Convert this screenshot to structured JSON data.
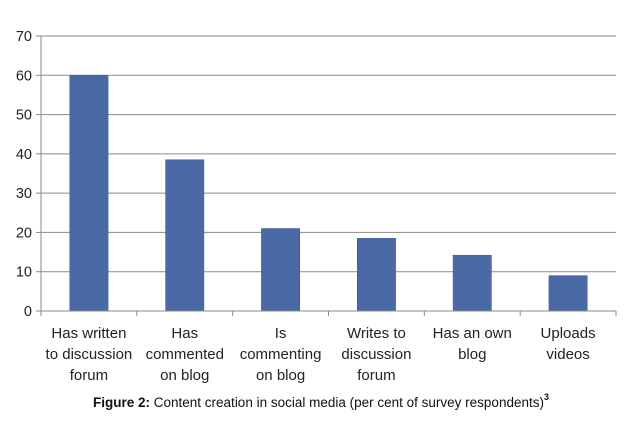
{
  "chart_data": {
    "type": "bar",
    "categories": [
      "Has written to discussion forum",
      "Has commented on blog",
      "Is commenting on blog",
      "Writes to discussion forum",
      "Has an own blog",
      "Uploads videos"
    ],
    "category_lines": [
      [
        "Has written",
        "to discussion",
        "forum"
      ],
      [
        "Has",
        "commented",
        "on blog"
      ],
      [
        "Is",
        "commenting",
        "on blog"
      ],
      [
        "Writes to",
        "discussion",
        "forum"
      ],
      [
        "Has an own",
        "blog"
      ],
      [
        "Uploads",
        "videos"
      ]
    ],
    "values": [
      60,
      38.5,
      21,
      18.5,
      14.2,
      9
    ],
    "ylim": [
      0,
      70
    ],
    "yticks": [
      "0",
      "10",
      "20",
      "30",
      "40",
      "50",
      "60",
      "70"
    ],
    "grid": true,
    "bar_color": "#4a6aa5",
    "grid_color": "#8a8a8a"
  },
  "caption": {
    "label": "Figure 2:",
    "text": " Content creation in social media (per cent of survey respondents)",
    "superscript": "3"
  }
}
